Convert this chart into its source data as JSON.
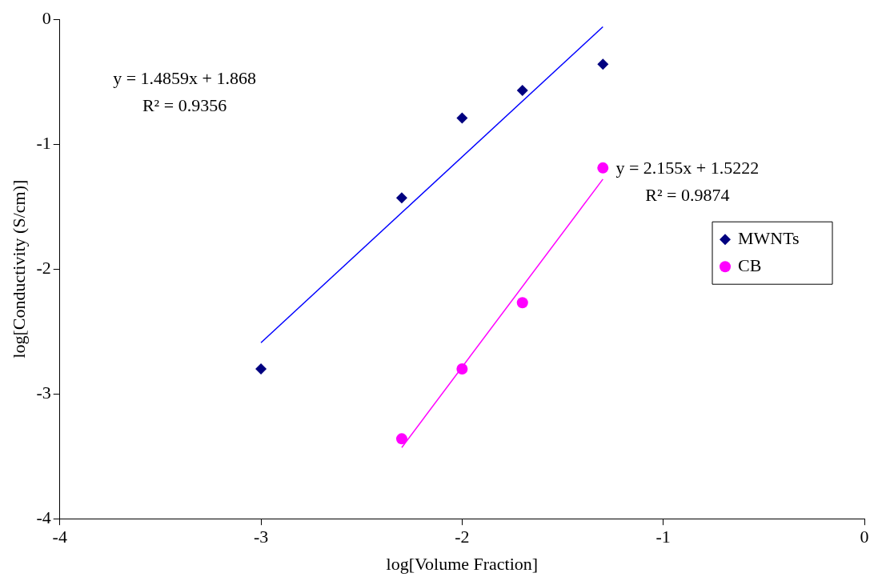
{
  "chart_data": {
    "type": "scatter",
    "xlabel": "log[Volume Fraction]",
    "ylabel": "log[Conductivity (S/cm)]",
    "xlim": [
      -4,
      0
    ],
    "xticks": [
      -4,
      -3,
      -2,
      -1,
      0
    ],
    "ylim": [
      -4,
      0
    ],
    "yticks": [
      -4,
      -3,
      -2,
      -1,
      0
    ],
    "grid": false,
    "legend": "right",
    "series": [
      {
        "name": "MWNTs",
        "marker": "diamond",
        "color": "#000080",
        "x": [
          -3,
          -2.3,
          -2,
          -1.7,
          -1.3
        ],
        "values": [
          -2.8,
          -1.43,
          -0.79,
          -0.57,
          -0.36
        ]
      },
      {
        "name": "CB",
        "marker": "circle",
        "color": "#ff00ff",
        "x": [
          -2.3,
          -2,
          -1.7,
          -1.3
        ],
        "values": [
          -3.36,
          -2.8,
          -2.27,
          -1.19
        ]
      },
      {
        "type": "line",
        "marker": "none",
        "color": "#0000ff",
        "x": [
          -3,
          -1.3
        ],
        "values": [
          -2.59,
          -0.06
        ]
      },
      {
        "type": "line",
        "marker": "none",
        "color": "#ff00ff",
        "x": [
          -2.3,
          -1.3
        ],
        "values": [
          -3.43,
          -1.28
        ]
      }
    ],
    "annotations": [
      "y = 1.4859x + 1.868",
      "R² = 0.9356",
      "y = 2.155x + 1.5222",
      "R² = 0.9874"
    ]
  }
}
